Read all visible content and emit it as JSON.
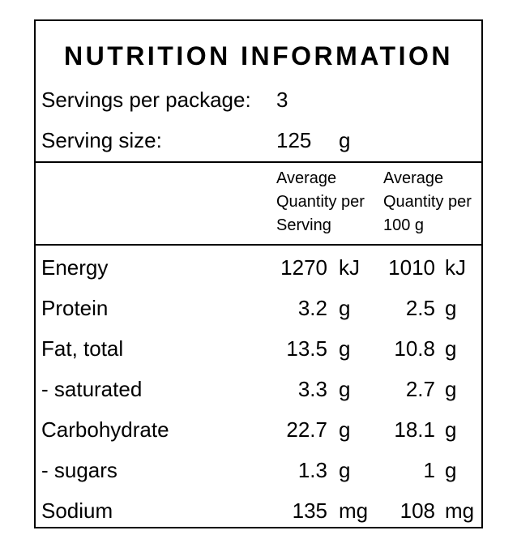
{
  "title": "NUTRITION INFORMATION",
  "servings": {
    "label": "Servings per package:",
    "value": "3"
  },
  "serving_size": {
    "label": "Serving size:",
    "value": "125",
    "unit": "g"
  },
  "columns": {
    "per_serving": [
      "Average",
      "Quantity per",
      "Serving"
    ],
    "per_100g": [
      "Average",
      "Quantity per",
      "100 g"
    ]
  },
  "rows": [
    {
      "label": "Energy",
      "per_serving": "1270",
      "per_serving_unit": "kJ",
      "per_100g": "1010",
      "per_100g_unit": "kJ"
    },
    {
      "label": "Protein",
      "per_serving": "3.2",
      "per_serving_unit": "g",
      "per_100g": "2.5",
      "per_100g_unit": "g"
    },
    {
      "label": "Fat, total",
      "per_serving": "13.5",
      "per_serving_unit": "g",
      "per_100g": "10.8",
      "per_100g_unit": "g"
    },
    {
      "label": "- saturated",
      "per_serving": "3.3",
      "per_serving_unit": "g",
      "per_100g": "2.7",
      "per_100g_unit": "g"
    },
    {
      "label": "Carbohydrate",
      "per_serving": "22.7",
      "per_serving_unit": "g",
      "per_100g": "18.1",
      "per_100g_unit": "g"
    },
    {
      "label": "- sugars",
      "per_serving": "1.3",
      "per_serving_unit": "g",
      "per_100g": "1",
      "per_100g_unit": "g"
    },
    {
      "label": "Sodium",
      "per_serving": "135",
      "per_serving_unit": "mg",
      "per_100g": "108",
      "per_100g_unit": "mg"
    }
  ]
}
